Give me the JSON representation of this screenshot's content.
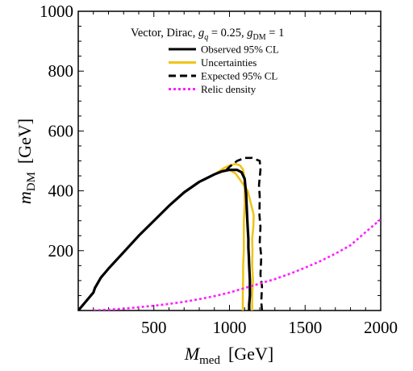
{
  "chart_data": {
    "type": "line",
    "title": "Vector, Dirac, g_q = 0.25, g_DM = 1",
    "title_parts": {
      "prefix": "Vector, Dirac, ",
      "gq_symbol": "g",
      "gq_sub": "q",
      "gq_value": " = 0.25, ",
      "gdm_symbol": "g",
      "gdm_sub": "DM",
      "gdm_value": " = 1"
    },
    "xlabel": "M_med  [GeV]",
    "xlabel_parts": {
      "symbol": "M",
      "sub": "med",
      "unit": "[GeV]"
    },
    "ylabel": "m_DM  [GeV]",
    "ylabel_parts": {
      "symbol": "m",
      "sub": "DM",
      "unit": "[GeV]"
    },
    "xlim": [
      0,
      2000
    ],
    "ylim": [
      0,
      1000
    ],
    "xticks": [
      "500",
      "1000",
      "1500",
      "2000"
    ],
    "yticks": [
      "200",
      "400",
      "600",
      "800",
      "1000"
    ],
    "grid": false,
    "legend_position": "top-right",
    "series": [
      {
        "name": "Observed 95% CL",
        "color": "#000000",
        "style": "solid",
        "x": [
          0,
          50,
          100,
          110,
          150,
          200,
          300,
          400,
          500,
          600,
          700,
          800,
          900,
          950,
          1000,
          1050,
          1080,
          1100,
          1110,
          1115,
          1120,
          1125,
          1125,
          1128,
          1130,
          1135,
          1135,
          1130,
          1130
        ],
        "y": [
          0,
          30,
          60,
          75,
          110,
          140,
          195,
          250,
          300,
          350,
          395,
          430,
          455,
          465,
          470,
          470,
          462,
          440,
          390,
          330,
          280,
          240,
          210,
          180,
          150,
          100,
          50,
          20,
          0
        ]
      },
      {
        "name": "Uncertainties",
        "color": "#f0c419",
        "style": "solid",
        "x": [
          900,
          960,
          1000,
          1040,
          1070,
          1090,
          1100,
          1100,
          1095,
          1095,
          1090,
          1090,
          1088,
          1088
        ],
        "y": [
          455,
          475,
          485,
          490,
          485,
          470,
          440,
          350,
          300,
          200,
          150,
          100,
          50,
          0
        ]
      },
      {
        "name": "Uncertainties",
        "color": "#f0c419",
        "style": "solid",
        "x": [
          1000,
          1040,
          1080,
          1120,
          1140,
          1160,
          1158,
          1150,
          1152,
          1150,
          1155,
          1150,
          1150
        ],
        "y": [
          470,
          458,
          430,
          400,
          360,
          320,
          280,
          240,
          200,
          150,
          100,
          50,
          0
        ]
      },
      {
        "name": "Expected 95% CL",
        "color": "#000000",
        "style": "dashed",
        "x": [
          980,
          1000,
          1050,
          1100,
          1150,
          1200,
          1205,
          1195,
          1200,
          1198,
          1205,
          1200,
          1210,
          1205,
          1215,
          1210,
          1215
        ],
        "y": [
          470,
          480,
          500,
          510,
          510,
          500,
          470,
          420,
          380,
          320,
          280,
          230,
          180,
          120,
          80,
          30,
          0
        ]
      },
      {
        "name": "Relic density",
        "color": "#ff1fff",
        "style": "dotted",
        "x": [
          100,
          200,
          300,
          400,
          500,
          600,
          700,
          800,
          900,
          1000,
          1100,
          1200,
          1300,
          1400,
          1500,
          1600,
          1700,
          1800,
          1900,
          2000
        ],
        "y": [
          0,
          3,
          6,
          11,
          16,
          22,
          29,
          38,
          48,
          60,
          75,
          90,
          105,
          123,
          143,
          165,
          190,
          218,
          262,
          305
        ]
      }
    ],
    "legend": [
      {
        "label": "Observed 95% CL",
        "color": "#000000",
        "style": "solid"
      },
      {
        "label": "Uncertainties",
        "color": "#f0c419",
        "style": "solid"
      },
      {
        "label": "Expected 95% CL",
        "color": "#000000",
        "style": "dashed"
      },
      {
        "label": "Relic density",
        "color": "#ff1fff",
        "style": "dotted"
      }
    ]
  }
}
